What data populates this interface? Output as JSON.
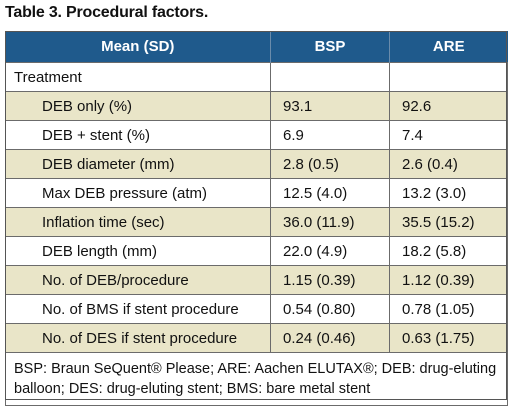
{
  "title": "Table 3. Procedural factors.",
  "headers": [
    "Mean (SD)",
    "BSP",
    "ARE"
  ],
  "section_label": "Treatment",
  "rows": [
    {
      "label": "DEB only (%)",
      "bsp": "93.1",
      "are": "92.6"
    },
    {
      "label": "DEB + stent (%)",
      "bsp": "6.9",
      "are": "7.4"
    },
    {
      "label": "DEB diameter (mm)",
      "bsp": "2.8 (0.5)",
      "are": "2.6 (0.4)"
    },
    {
      "label": "Max DEB pressure (atm)",
      "bsp": "12.5 (4.0)",
      "are": "13.2 (3.0)"
    },
    {
      "label": "Inflation time (sec)",
      "bsp": "36.0 (11.9)",
      "are": "35.5 (15.2)"
    },
    {
      "label": "DEB length (mm)",
      "bsp": "22.0 (4.9)",
      "are": "18.2 (5.8)"
    },
    {
      "label": "No. of DEB/procedure",
      "bsp": "1.15 (0.39)",
      "are": "1.12 (0.39)"
    },
    {
      "label": "No. of BMS if stent procedure",
      "bsp": "0.54 (0.80)",
      "are": "0.78 (1.05)"
    },
    {
      "label": "No. of DES if stent procedure",
      "bsp": "0.24 (0.46)",
      "are": "0.63 (1.75)"
    }
  ],
  "footnote": "BSP: Braun SeQuent® Please; ARE: Aachen ELUTAX®; DEB: drug-eluting balloon; DES: drug-eluting stent; BMS: bare metal stent",
  "colors": {
    "header_bg": "#1f5a8c",
    "shade_bg": "#e9e5c8"
  }
}
